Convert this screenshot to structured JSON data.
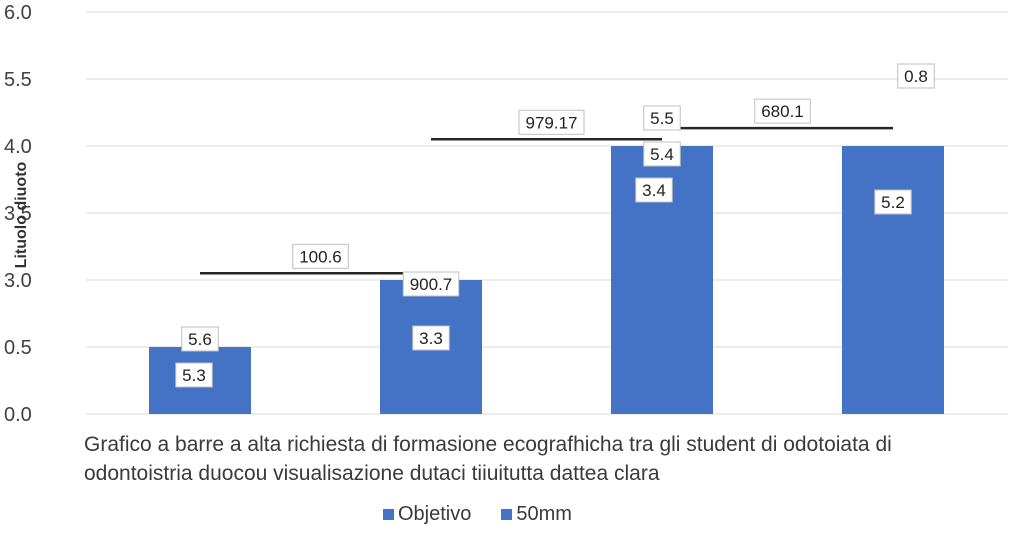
{
  "chart_data": {
    "type": "bar",
    "title": "",
    "ylabel": "Lituolo diuoto",
    "xlabel": "",
    "y_ticks": [
      "0.0",
      "0.5",
      "3.0",
      "3.5",
      "4.0",
      "5.5",
      "6.0"
    ],
    "bar_values": [
      0.5,
      3.0,
      4.0,
      4.0
    ],
    "bar_labels": [
      [
        "5.6",
        "5.3"
      ],
      [
        "900.7",
        "3.3"
      ],
      [
        "5.5",
        "5.4",
        "3.4"
      ],
      [
        "5.2"
      ]
    ],
    "series": [
      {
        "name": "Objetivo",
        "color": "#4472c4",
        "values": [
          0.5,
          3.0,
          4.0,
          4.0
        ]
      },
      {
        "name": "50mm",
        "color": "#4472c4",
        "values": []
      }
    ],
    "target_lines": [
      {
        "from_bar": 0,
        "to_bar": 1,
        "value": 3.05,
        "label": "100.6"
      },
      {
        "from_bar": 1,
        "to_bar": 2,
        "value": 4.15,
        "label": "979.17"
      },
      {
        "from_bar": 2,
        "to_bar": 3,
        "value": 4.4,
        "label": "680.1"
      }
    ],
    "extra_labels": [
      "0.8"
    ],
    "grid": true,
    "legend_position": "bottom"
  },
  "caption": {
    "line1": "Grafico a barre a alta richiesta di formasione ecografhicha tra gli student di odotoiata di",
    "line2": "odontoistria duocou   visualisazione dutaci  tiiuitutta dattea clara"
  },
  "legend": {
    "item1": "Objetivo",
    "item2": "50mm"
  },
  "colors": {
    "bar": "#4472c4",
    "grid": "#d9d9d9",
    "target_line": "#262626"
  }
}
